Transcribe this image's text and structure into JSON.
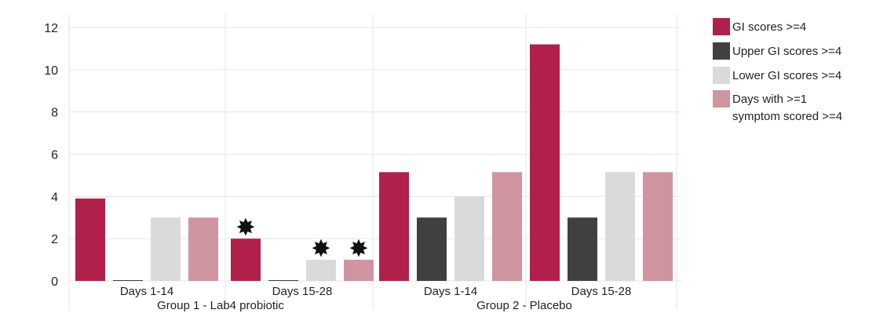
{
  "chart_data": {
    "type": "bar",
    "title": "",
    "xlabel": "",
    "ylabel": "",
    "ylim": [
      0,
      12
    ],
    "yticks": [
      0,
      2,
      4,
      6,
      8,
      10,
      12
    ],
    "grid": true,
    "legend_position": "right",
    "groups": [
      {
        "label": "Group 1 - Lab4 probiotic",
        "categories": [
          "Days 1-14",
          "Days 15-28"
        ]
      },
      {
        "label": "Group 2 - Placebo",
        "categories": [
          "Days 1-14",
          "Days 15-28"
        ]
      }
    ],
    "categories": [
      "Days 1-14",
      "Days 15-28",
      "Days 1-14",
      "Days 15-28"
    ],
    "series": [
      {
        "name": "GI scores >=4",
        "color": "#b0204a",
        "values": [
          3.9,
          2,
          5.15,
          11.2
        ]
      },
      {
        "name": "Upper GI scores >=4",
        "color": "#404040",
        "values": [
          0,
          0,
          3,
          3
        ]
      },
      {
        "name": "Lower GI scores >=4",
        "color": "#dadada",
        "values": [
          3,
          1,
          4,
          5.15
        ]
      },
      {
        "name": "Days with >=1 symptom scored >=4",
        "legend_lines": [
          "Days with >=1",
          "symptom scored >=4"
        ],
        "color": "#ce94a0",
        "values": [
          3,
          1,
          5.15,
          5.15
        ]
      }
    ],
    "annotations": [
      {
        "category_index": 1,
        "series_index": 0,
        "symbol": "✸"
      },
      {
        "category_index": 1,
        "series_index": 2,
        "symbol": "✸"
      },
      {
        "category_index": 1,
        "series_index": 3,
        "symbol": "✸"
      }
    ]
  }
}
